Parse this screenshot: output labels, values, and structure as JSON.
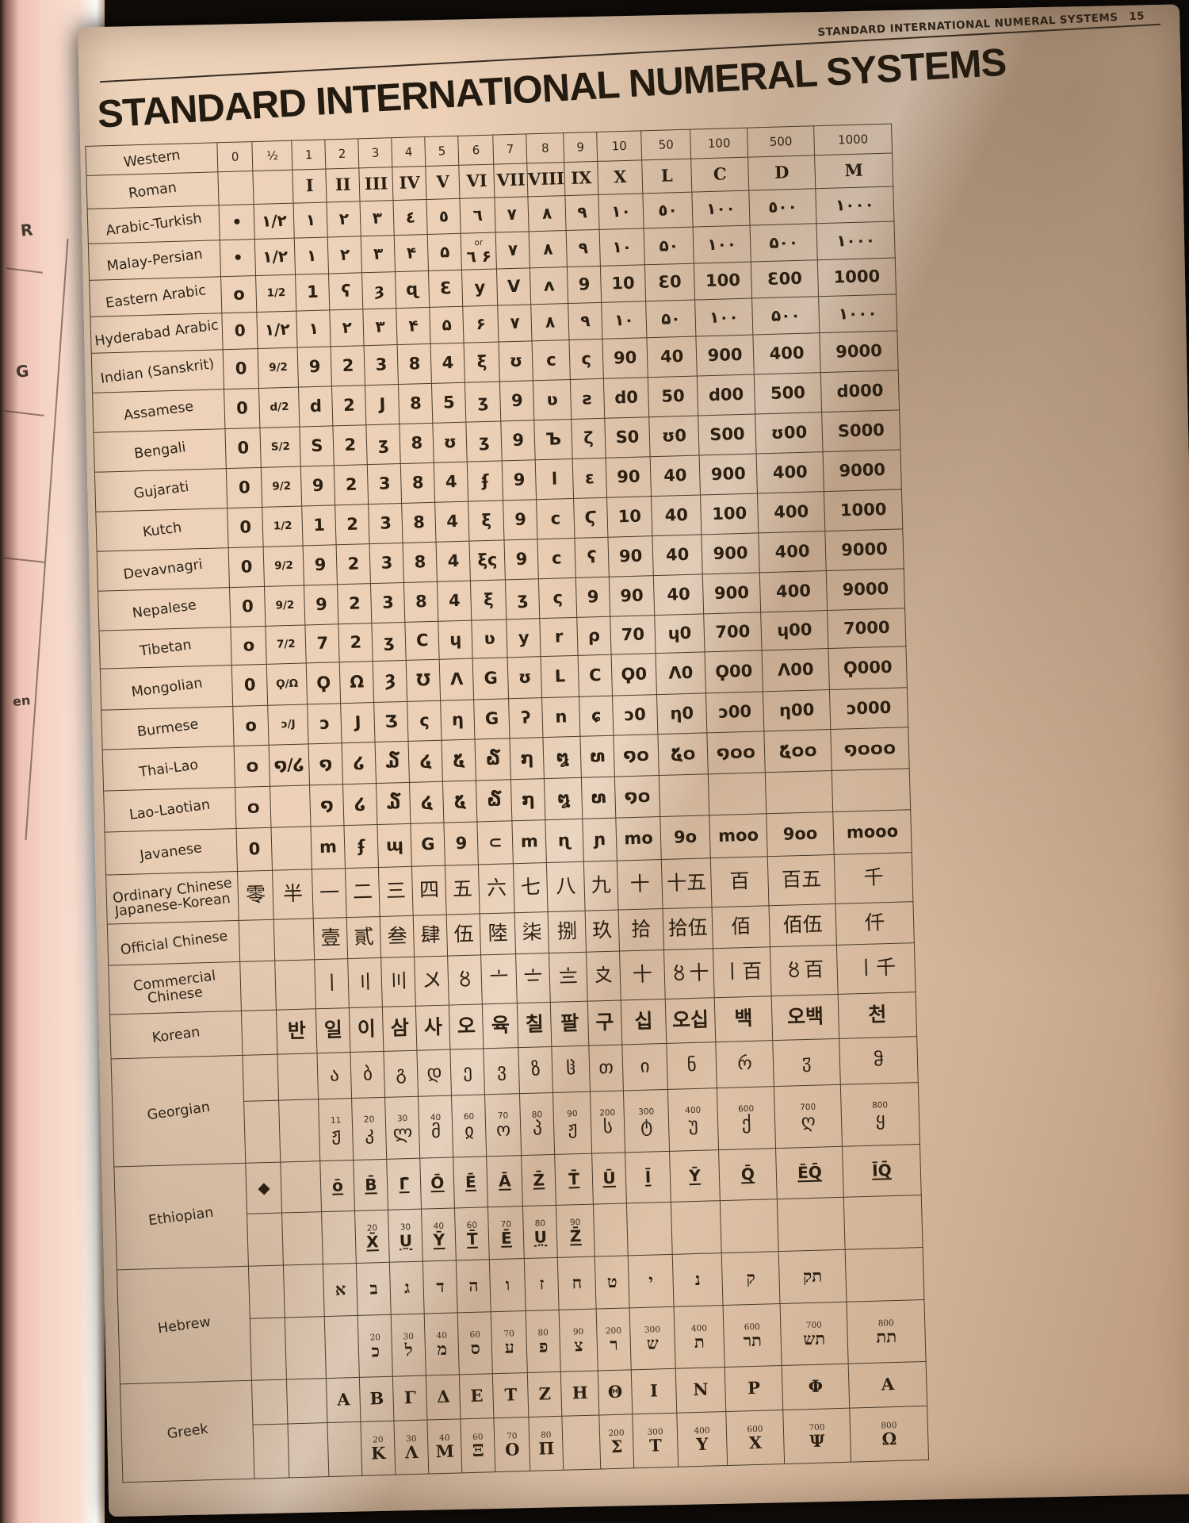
{
  "page": {
    "running_header": "STANDARD INTERNATIONAL NUMERAL SYSTEMS",
    "page_number": "15",
    "title": "STANDARD INTERNATIONAL NUMERAL SYSTEMS"
  },
  "left_page": {
    "fragments": [
      "R",
      "G",
      "en"
    ]
  },
  "colors": {
    "page": "#ebd0b6",
    "ink": "#2b1f12",
    "grid_line": "#4a3b2a",
    "background": "#100c09",
    "left_page_pink": "#f4d2c4"
  },
  "table": {
    "label_header": "Western",
    "col_headers": [
      "0",
      "½",
      "1",
      "2",
      "3",
      "4",
      "5",
      "6",
      "7",
      "8",
      "9",
      "10",
      "50",
      "100",
      "500",
      "1000"
    ],
    "systems": [
      {
        "label": "Roman",
        "style": "serif",
        "rows": [
          [
            "",
            "",
            "I",
            "II",
            "III",
            "IV",
            "V",
            "VI",
            "VII",
            "VIII",
            "IX",
            "X",
            "L",
            "C",
            "D",
            "M"
          ]
        ]
      },
      {
        "label": "Arabic-Turkish",
        "style": "ar",
        "rows": [
          [
            "•",
            "١/٢",
            "١",
            "٢",
            "٣",
            "٤",
            "٥",
            "٦",
            "٧",
            "٨",
            "٩",
            "١٠",
            "٥٠",
            "١٠٠",
            "٥٠٠",
            "١٠٠٠"
          ]
        ]
      },
      {
        "label": "Malay-Persian",
        "style": "ar",
        "rows": [
          [
            "•",
            "۱/۲",
            "۱",
            "۲",
            "۳",
            "۴",
            "۵",
            {
              "s": "or",
              "t": "٦ ۶"
            },
            "۷",
            "۸",
            "۹",
            "۱۰",
            "۵۰",
            "۱۰۰",
            "۵۰۰",
            "۱۰۰۰"
          ]
        ]
      },
      {
        "label": "Eastern Arabic",
        "style": "hand",
        "rows": [
          [
            "o",
            "1/2",
            "1",
            "ʕ",
            "ȝ",
            "ɋ",
            "Ɛ",
            "y",
            "V",
            "ʌ",
            "9",
            "10",
            "Ɛ0",
            "100",
            "Ɛ00",
            "1000"
          ]
        ]
      },
      {
        "label": "Hyderabad Arabic",
        "style": "ar",
        "rows": [
          [
            "0",
            "۱/۲",
            "۱",
            "۲",
            "۳",
            "۴",
            "۵",
            "۶",
            "۷",
            "۸",
            "۹",
            "۱۰",
            "۵۰",
            "۱۰۰",
            "۵۰۰",
            "۱۰۰۰"
          ]
        ]
      },
      {
        "label": "Indian (Sanskrit)",
        "style": "hand",
        "rows": [
          [
            "0",
            "9/2",
            "9",
            "2",
            "3",
            "8",
            "4",
            "ξ",
            "ʊ",
            "c",
            "ς",
            "90",
            "40",
            "900",
            "400",
            "9000"
          ]
        ]
      },
      {
        "label": "Assamese",
        "style": "hand",
        "rows": [
          [
            "0",
            "d/2",
            "d",
            "2",
            "J",
            "8",
            "5",
            "ʒ",
            "9",
            "ʋ",
            "ƨ",
            "d0",
            "50",
            "d00",
            "500",
            "d000"
          ]
        ]
      },
      {
        "label": "Bengali",
        "style": "hand",
        "rows": [
          [
            "0",
            "Ѕ/2",
            "Ѕ",
            "2",
            "ʒ",
            "8",
            "ʊ",
            "ʒ",
            "9",
            "Ъ",
            "ζ",
            "Ѕ0",
            "ʊ0",
            "Ѕ00",
            "ʊ00",
            "Ѕ000"
          ]
        ]
      },
      {
        "label": "Gujarati",
        "style": "hand",
        "rows": [
          [
            "0",
            "9/2",
            "9",
            "2",
            "3",
            "8",
            "4",
            "ʄ",
            "9",
            "l",
            "ε",
            "90",
            "40",
            "900",
            "400",
            "9000"
          ]
        ]
      },
      {
        "label": "Kutch",
        "style": "hand",
        "rows": [
          [
            "0",
            "1/2",
            "1",
            "2",
            "3",
            "8",
            "4",
            "ξ",
            "9",
            "c",
            "Ϛ",
            "10",
            "40",
            "100",
            "400",
            "1000"
          ]
        ]
      },
      {
        "label": "Devavnagri",
        "style": "hand",
        "rows": [
          [
            "0",
            "9/2",
            "9",
            "2",
            "3",
            "8",
            "4",
            "ξς",
            "9",
            "c",
            "ʕ",
            "90",
            "40",
            "900",
            "400",
            "9000"
          ]
        ]
      },
      {
        "label": "Nepalese",
        "style": "hand",
        "rows": [
          [
            "0",
            "9/2",
            "9",
            "2",
            "3",
            "8",
            "4",
            "ξ",
            "ʒ",
            "ς",
            "9",
            "90",
            "40",
            "900",
            "400",
            "9000"
          ]
        ]
      },
      {
        "label": "Tibetan",
        "style": "hand",
        "rows": [
          [
            "o",
            "7/2",
            "7",
            "2",
            "ʒ",
            "C",
            "ɥ",
            "ʋ",
            "y",
            "r",
            "ρ",
            "70",
            "ɥ0",
            "700",
            "ɥ00",
            "7000"
          ]
        ]
      },
      {
        "label": "Mongolian",
        "style": "hand",
        "rows": [
          [
            "0",
            "Ϙ/Ω",
            "Ϙ",
            "Ω",
            "Ȝ",
            "Ʊ",
            "Λ",
            "G",
            "ʊ",
            "L",
            "C",
            "Ϙ0",
            "Λ0",
            "Ϙ00",
            "Λ00",
            "Ϙ000"
          ]
        ]
      },
      {
        "label": "Burmese",
        "style": "hand",
        "rows": [
          [
            "o",
            "ɔ/J",
            "ɔ",
            "J",
            "Ʒ",
            "ς",
            "η",
            "G",
            "ʔ",
            "n",
            "ɕ",
            "ɔ0",
            "η0",
            "ɔ00",
            "η00",
            "ɔ000"
          ]
        ]
      },
      {
        "label": "Thai-Lao",
        "style": "lao",
        "rows": [
          [
            "໐",
            "໑/໒",
            "໑",
            "໒",
            "໓",
            "໔",
            "໕",
            "໖",
            "໗",
            "໘",
            "໙",
            "໑໐",
            "໕໐",
            "໑໐໐",
            "໕໐໐",
            "໑໐໐໐"
          ]
        ]
      },
      {
        "label": "Lao-Laotian",
        "style": "lao",
        "rows": [
          [
            "໐",
            "",
            "໑",
            "໒",
            "໓",
            "໔",
            "໕",
            "໖",
            "໗",
            "໘",
            "໙",
            "໑໐",
            "",
            "",
            "",
            ""
          ]
        ]
      },
      {
        "label": "Javanese",
        "style": "hand",
        "rows": [
          [
            "0",
            "",
            "m",
            "ʄ",
            "ɰ",
            "G",
            "9",
            "⊂",
            "m",
            "ɳ",
            "ɲ",
            "mo",
            "9o",
            "moo",
            "9oo",
            "mooo"
          ]
        ]
      },
      {
        "label": "Ordinary Chinese",
        "label2": "Japanese-Korean",
        "style": "cjk",
        "rows": [
          [
            "零",
            "半",
            "一",
            "二",
            "三",
            "四",
            "五",
            "六",
            "七",
            "八",
            "九",
            "十",
            "十五",
            "百",
            "百五",
            "千"
          ]
        ]
      },
      {
        "label": "Official Chinese",
        "style": "cjk",
        "rows": [
          [
            "",
            "",
            "壹",
            "貳",
            "叁",
            "肆",
            "伍",
            "陸",
            "柒",
            "捌",
            "玖",
            "拾",
            "拾伍",
            "佰",
            "佰伍",
            "仟"
          ]
        ]
      },
      {
        "label": "Commercial",
        "label2": "Chinese",
        "style": "cjk",
        "rows": [
          [
            "",
            "",
            "〡",
            "〢",
            "〣",
            "〤",
            "〥",
            "〦",
            "〧",
            "〨",
            "〩",
            "十",
            "〥十",
            "〡百",
            "〥百",
            "〡千"
          ]
        ]
      },
      {
        "label": "Korean",
        "style": "kor",
        "rows": [
          [
            "",
            "반",
            "일",
            "이",
            "삼",
            "사",
            "오",
            "육",
            "칠",
            "팔",
            "구",
            "십",
            "오십",
            "백",
            "오백",
            "천"
          ]
        ]
      },
      {
        "label": "Georgian",
        "style": "geo",
        "rows": [
          [
            "",
            "",
            "ა",
            "ბ",
            "გ",
            "დ",
            "ე",
            "ვ",
            "ზ",
            "ჱ",
            "თ",
            "ი",
            "ნ",
            "რ",
            "ჳ",
            "ჵ"
          ],
          [
            "",
            "",
            {
              "s": "11",
              "t": "ჟ"
            },
            {
              "s": "20",
              "t": "კ"
            },
            {
              "s": "30",
              "t": "ლ"
            },
            {
              "s": "40",
              "t": "მ"
            },
            {
              "s": "60",
              "t": "ჲ"
            },
            {
              "s": "70",
              "t": "ო"
            },
            {
              "s": "80",
              "t": "პ"
            },
            {
              "s": "90",
              "t": "ჟ"
            },
            {
              "s": "200",
              "t": "ს"
            },
            {
              "s": "300",
              "t": "ტ"
            },
            {
              "s": "400",
              "t": "უ"
            },
            {
              "s": "600",
              "t": "ქ"
            },
            {
              "s": "700",
              "t": "ღ"
            },
            {
              "s": "800",
              "t": "ყ"
            }
          ]
        ]
      },
      {
        "label": "Ethiopian",
        "style": "eth",
        "rows": [
          [
            "◆",
            "",
            "ō",
            "B̄",
            "Γ̄",
            "Ō",
            "Ē",
            "Ā",
            "Z̄",
            "T̄",
            "Ū",
            "Ī",
            "Ȳ",
            "Q̄",
            "ĒQ̄",
            "ĪQ̄"
          ],
          [
            "",
            "",
            "",
            {
              "s": "20",
              "t": "X̄"
            },
            {
              "s": "30",
              "t": "Ṵ"
            },
            {
              "s": "40",
              "t": "Ȳ"
            },
            {
              "s": "60",
              "t": "T̄"
            },
            {
              "s": "70",
              "t": "Ē"
            },
            {
              "s": "80",
              "t": "Ṳ"
            },
            {
              "s": "90",
              "t": "Z̄"
            },
            "",
            "",
            "",
            "",
            "",
            ""
          ]
        ]
      },
      {
        "label": "Hebrew",
        "style": "serif",
        "rows": [
          [
            "",
            "",
            "א",
            "ב",
            "ג",
            "ד",
            "ה",
            "ו",
            "ז",
            "ח",
            "ט",
            "י",
            "נ",
            "ק",
            "תק",
            ""
          ],
          [
            "",
            "",
            "",
            {
              "s": "20",
              "t": "כ"
            },
            {
              "s": "30",
              "t": "ל"
            },
            {
              "s": "40",
              "t": "מ"
            },
            {
              "s": "60",
              "t": "ס"
            },
            {
              "s": "70",
              "t": "ע"
            },
            {
              "s": "80",
              "t": "פ"
            },
            {
              "s": "90",
              "t": "צ"
            },
            {
              "s": "200",
              "t": "ר"
            },
            {
              "s": "300",
              "t": "ש"
            },
            {
              "s": "400",
              "t": "ת"
            },
            {
              "s": "600",
              "t": "תר"
            },
            {
              "s": "700",
              "t": "תש"
            },
            {
              "s": "800",
              "t": "תת"
            }
          ]
        ]
      },
      {
        "label": "Greek",
        "style": "serif",
        "rows": [
          [
            "",
            "",
            "Α",
            "Β",
            "Γ",
            "Δ",
            "Ε",
            "Τ",
            "Ζ",
            "Η",
            "Θ",
            "Ι",
            "Ν",
            "Ρ",
            "Φ",
            "Α"
          ],
          [
            "",
            "",
            "",
            {
              "s": "20",
              "t": "Κ"
            },
            {
              "s": "30",
              "t": "Λ"
            },
            {
              "s": "40",
              "t": "Μ"
            },
            {
              "s": "60",
              "t": "Ξ"
            },
            {
              "s": "70",
              "t": "Ο"
            },
            {
              "s": "80",
              "t": "Π"
            },
            "",
            {
              "s": "200",
              "t": "Σ"
            },
            {
              "s": "300",
              "t": "Τ"
            },
            {
              "s": "400",
              "t": "Υ"
            },
            {
              "s": "600",
              "t": "Χ"
            },
            {
              "s": "700",
              "t": "Ψ"
            },
            {
              "s": "800",
              "t": "Ω"
            }
          ]
        ]
      }
    ]
  }
}
